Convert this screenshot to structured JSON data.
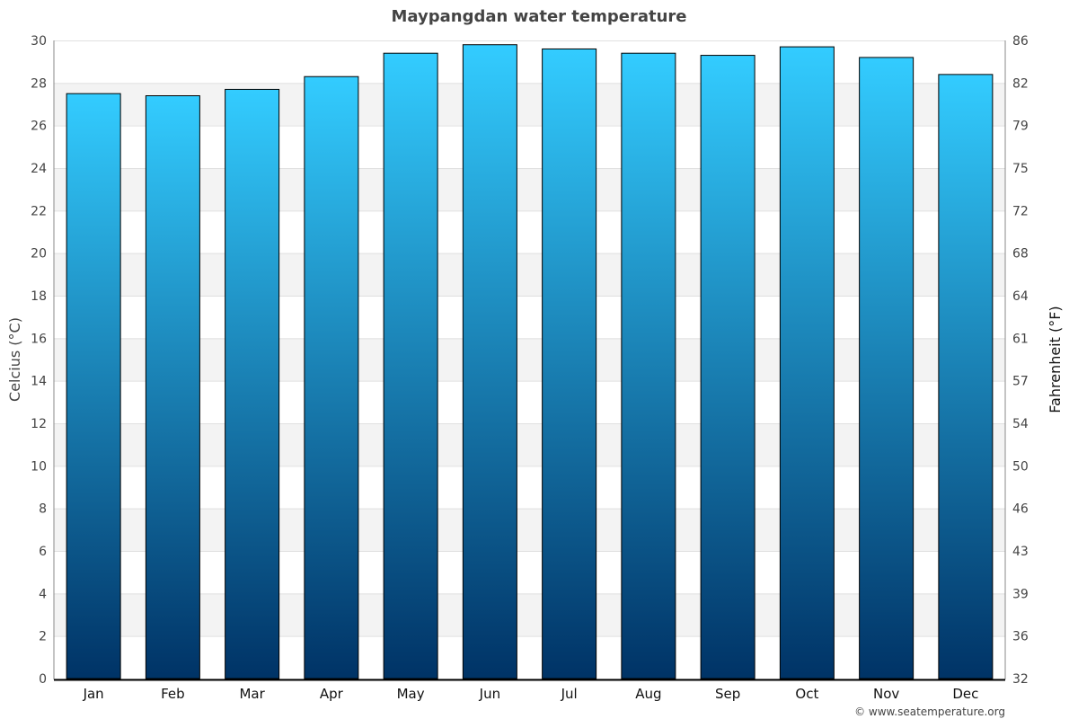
{
  "chart_data": {
    "type": "bar",
    "title": "Maypangdan water temperature",
    "ylabel": "Celcius (°C)",
    "y2label": "Fahrenheit (°F)",
    "categories": [
      "Jan",
      "Feb",
      "Mar",
      "Apr",
      "May",
      "Jun",
      "Jul",
      "Aug",
      "Sep",
      "Oct",
      "Nov",
      "Dec"
    ],
    "values": [
      27.5,
      27.4,
      27.7,
      28.3,
      29.4,
      29.8,
      29.6,
      29.4,
      29.3,
      29.7,
      29.2,
      28.4
    ],
    "ylim": [
      0,
      30
    ],
    "yticks": [
      "0",
      "2",
      "4",
      "6",
      "8",
      "10",
      "12",
      "14",
      "16",
      "18",
      "20",
      "22",
      "24",
      "26",
      "28",
      "30"
    ],
    "y2ticks": [
      "32",
      "36",
      "39",
      "43",
      "46",
      "50",
      "54",
      "57",
      "61",
      "64",
      "68",
      "72",
      "75",
      "79",
      "82",
      "86"
    ],
    "grid": true,
    "colors": {
      "bar_top": "#33ccff",
      "bar_bottom": "#003366",
      "band": "#f3f3f3"
    }
  },
  "footer": {
    "credit": "© www.seatemperature.org"
  }
}
